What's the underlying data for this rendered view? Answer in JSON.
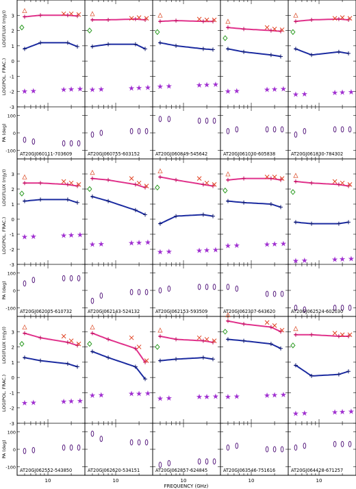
{
  "figure": {
    "xlabel": "FREQUENCY (GHz)",
    "ylabel_flux": "LOG(FLUX (mJy))",
    "ylabel_pol": "LOG(POL. FRAC.)",
    "ylabel_pa": "PA (deg)"
  },
  "chart_data": {
    "type": "scatter",
    "layout": "3 rows x 5 columns of three-panel plots",
    "x_axis": {
      "label": "FREQUENCY (GHz)",
      "scale": "log",
      "range": [
        4,
        30
      ],
      "tick_label": "10"
    },
    "y_axis_top": {
      "label": "LOG(FLUX (mJy))",
      "range": [
        -3,
        4
      ],
      "tick_labels": [
        "-3",
        "-2",
        "-1",
        "0",
        "1",
        "2",
        "3"
      ]
    },
    "y_axis_pa": {
      "label": "PA (deg)",
      "range": [
        -150,
        150
      ],
      "tick_labels": [
        "-100",
        "0",
        "100"
      ]
    },
    "colors": {
      "total_flux": "#e0308a",
      "polarized_flux": "#1a2aa0",
      "pol_fraction": "#a030d0",
      "pa": "#5a2080",
      "atca_cross": "#e04020",
      "triangle": "#e06040",
      "diamond": "#2a9a20"
    },
    "panels": [
      {
        "name": "AT20GJ060111-703609",
        "flux": [
          2.9,
          3.0,
          3.0,
          2.95
        ],
        "pol": [
          0.8,
          1.2,
          1.2,
          0.95
        ],
        "frac": -1.9,
        "pa": [
          -40,
          -50,
          -60
        ]
      },
      {
        "name": "AT20GJ060755-603152",
        "flux": [
          2.7,
          2.7,
          2.75,
          2.7
        ],
        "pol": [
          0.95,
          1.1,
          1.1,
          0.8
        ],
        "frac": -1.8,
        "pa": [
          -10,
          0,
          10
        ]
      },
      {
        "name": "AT20GJ060849-545642",
        "flux": [
          2.6,
          2.65,
          2.6,
          2.6
        ],
        "pol": [
          1.2,
          1.0,
          0.8,
          0.75
        ],
        "frac": -1.6,
        "pa": [
          80,
          80,
          70
        ]
      },
      {
        "name": "AT20GJ061030-605838",
        "flux": [
          2.2,
          2.1,
          2.0,
          1.95
        ],
        "pol": [
          0.8,
          0.6,
          0.4,
          0.3
        ],
        "frac": -1.9,
        "pa": [
          10,
          20,
          20
        ]
      },
      {
        "name": "AT20GJ061830-784302",
        "flux": [
          2.6,
          2.7,
          2.75,
          2.7
        ],
        "pol": [
          0.8,
          0.4,
          0.6,
          0.5
        ],
        "frac": -2.1,
        "pa": [
          -10,
          10,
          20
        ]
      },
      {
        "name": "AT20GJ062005-610732",
        "flux": [
          2.4,
          2.4,
          2.3,
          2.2
        ],
        "pol": [
          1.2,
          1.3,
          1.3,
          1.1
        ],
        "frac": -1.1,
        "pa": [
          40,
          60,
          70
        ]
      },
      {
        "name": "AT20GJ062143-524132",
        "flux": [
          2.7,
          2.6,
          2.3,
          2.1
        ],
        "pol": [
          1.5,
          1.2,
          0.6,
          0.3
        ],
        "frac": -1.6,
        "pa": [
          -60,
          -30,
          -10
        ]
      },
      {
        "name": "AT20GJ062153-593509",
        "flux": [
          2.8,
          2.6,
          2.3,
          2.2
        ],
        "pol": [
          -0.3,
          0.2,
          0.3,
          0.2
        ],
        "frac": -2.1,
        "pa": [
          0,
          10,
          20
        ]
      },
      {
        "name": "AT20GJ062307-643620",
        "flux": [
          2.6,
          2.7,
          2.7,
          2.6
        ],
        "pol": [
          1.2,
          1.1,
          1.0,
          0.8
        ],
        "frac": -1.7,
        "pa": [
          20,
          10,
          -20
        ]
      },
      {
        "name": "AT20GJ062524-602030",
        "flux": [
          2.5,
          2.4,
          2.3,
          2.2
        ],
        "pol": [
          -0.2,
          -0.3,
          -0.3,
          -0.2
        ],
        "frac": -2.7,
        "pa": [
          -100,
          -110,
          -100
        ]
      },
      {
        "name": "AT20GJ062552-543850",
        "flux": [
          2.9,
          2.6,
          2.3,
          2.1
        ],
        "pol": [
          1.3,
          1.1,
          0.9,
          0.7
        ],
        "frac": -1.6,
        "pa": [
          -10,
          -5,
          10
        ]
      },
      {
        "name": "AT20GJ062620-534151",
        "flux": [
          2.9,
          2.5,
          1.9,
          1.0
        ],
        "pol": [
          1.7,
          1.3,
          0.7,
          -0.1
        ],
        "frac": -1.1,
        "pa": [
          90,
          60,
          40
        ]
      },
      {
        "name": "AT20GJ062857-624845",
        "flux": [
          2.7,
          2.5,
          2.4,
          2.3
        ],
        "pol": [
          1.1,
          1.2,
          1.3,
          1.2
        ],
        "frac": -1.3,
        "pa": [
          -90,
          -80,
          -70
        ]
      },
      {
        "name": "AT20GJ063546-751616",
        "flux": [
          3.7,
          3.5,
          3.3,
          3.0
        ],
        "pol": [
          2.5,
          2.4,
          2.2,
          1.9
        ],
        "frac": -1.2,
        "pa": [
          10,
          20,
          0
        ]
      },
      {
        "name": "AT20GJ064428-671257",
        "flux": [
          2.8,
          2.8,
          2.7,
          2.7
        ],
        "pol": [
          0.8,
          0.1,
          0.2,
          0.4
        ],
        "frac": -2.3,
        "pa": [
          10,
          20,
          30
        ]
      }
    ]
  }
}
